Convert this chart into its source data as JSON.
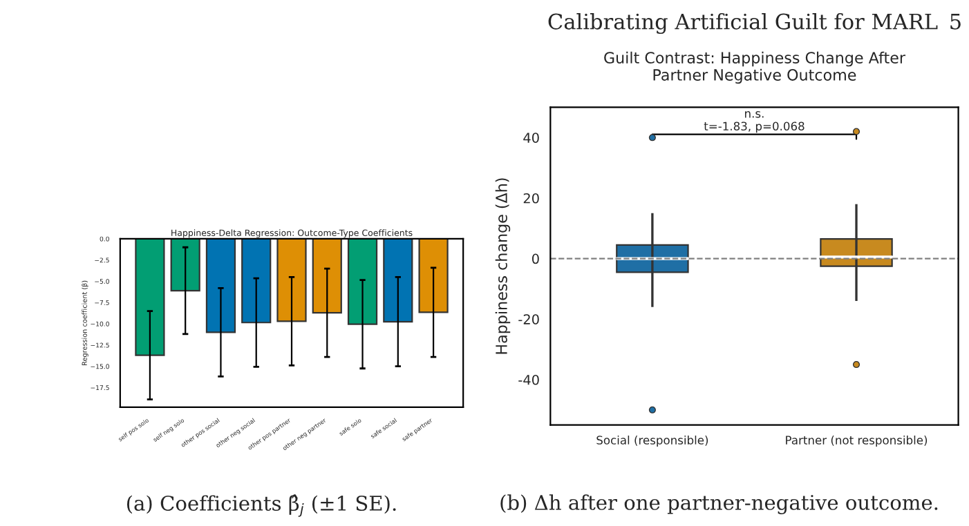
{
  "chart_data": [
    {
      "type": "bar",
      "title": "Happiness-Delta Regression: Outcome-Type Coefficients",
      "ylabel": "Regression coefficient (β)",
      "categories": [
        "self pos solo",
        "self neg solo",
        "other pos social",
        "other neg social",
        "other pos partner",
        "other neg partner",
        "safe solo",
        "safe social",
        "safe partner"
      ],
      "values": [
        -13.7,
        -6.1,
        -11.0,
        -9.85,
        -9.7,
        -8.7,
        -10.05,
        -9.75,
        -8.65
      ],
      "errors": [
        5.2,
        5.1,
        5.2,
        5.2,
        5.2,
        5.2,
        5.2,
        5.25,
        5.25
      ],
      "colors": [
        "#029e73",
        "#029e73",
        "#0173b2",
        "#0173b2",
        "#de8f05",
        "#de8f05",
        "#029e73",
        "#0173b2",
        "#de8f05"
      ],
      "ylim": [
        -19.8,
        0
      ],
      "yticks": [
        {
          "value": 0,
          "label": "0.0"
        },
        {
          "value": -2.5,
          "label": "−2.5"
        },
        {
          "value": -5,
          "label": "−5.0"
        },
        {
          "value": -7.5,
          "label": "−7.5"
        },
        {
          "value": -10,
          "label": "−10.0"
        },
        {
          "value": -12.5,
          "label": "−12.5"
        },
        {
          "value": -15,
          "label": "−15.0"
        },
        {
          "value": -17.5,
          "label": "−17.5"
        }
      ],
      "annotations": [
        "Calibrating Artificial Guilt for MARL",
        "5",
        "(a) Coefficients β̂$_{j}$ (±1 SE)."
      ]
    },
    {
      "type": "box",
      "title": "Guilt Contrast: Happiness Change After\nPartner Negative Outcome",
      "ylabel": "Happiness change (Δh)",
      "categories": [
        "Social (responsible)",
        "Partner (not responsible)"
      ],
      "boxes": [
        {
          "low": -16,
          "q1": -4.5,
          "median": 0,
          "q3": 4.5,
          "high": 15,
          "outliers": [
            -50,
            40
          ]
        },
        {
          "low": -14,
          "q1": -2.5,
          "median": 0.5,
          "q3": 6.5,
          "high": 18,
          "outliers": [
            -35,
            42
          ]
        }
      ],
      "colors": [
        "#1f6fa5",
        "#c88a1f"
      ],
      "ylim": [
        -55,
        50
      ],
      "yticks": [
        -40,
        -20,
        0,
        20,
        40
      ],
      "ref_lines": [
        {
          "axis": "y",
          "value": 0,
          "color": "#808080",
          "line_style": "dashed"
        }
      ],
      "annotations": [
        "n.s.",
        "t=-1.83, p=0.068",
        "(b) Δh after one partner-negative outcome."
      ]
    }
  ]
}
